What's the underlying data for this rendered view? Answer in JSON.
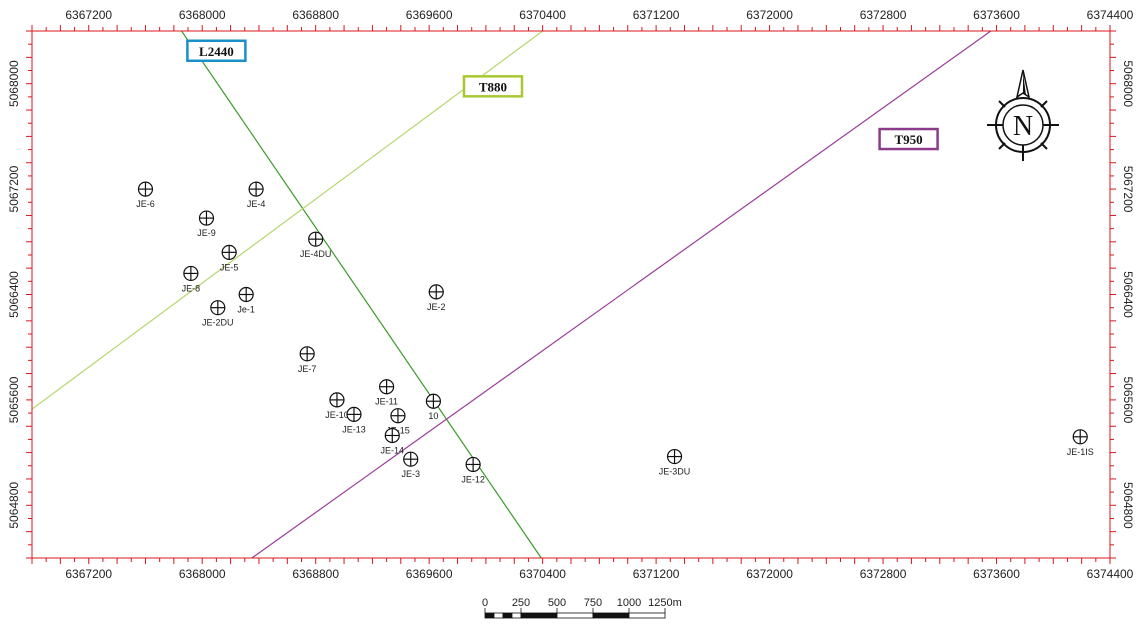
{
  "map": {
    "frame_color": "#d9161d",
    "x_range": [
      6366800,
      6374400
    ],
    "y_range": [
      5064400,
      5068400
    ],
    "x_ticks": [
      6367200,
      6368000,
      6368800,
      6369600,
      6370400,
      6371200,
      6372000,
      6372800,
      6373600,
      6374400
    ],
    "y_ticks": [
      5064800,
      5065600,
      5066400,
      5067200,
      5068000
    ],
    "x_tick_labels": [
      "6367200",
      "6368000",
      "6368800",
      "6369600",
      "6370400",
      "6371200",
      "6372000",
      "6372800",
      "6373600",
      "6374400"
    ],
    "y_tick_labels": [
      "5064800",
      "5065600",
      "5066400",
      "5067200",
      "5068000"
    ]
  },
  "profiles": [
    {
      "name": "L2440",
      "color": "#3a9a2a",
      "box_color": "#1a8fc8",
      "start": [
        6367810,
        5068470
      ],
      "end": [
        6370390,
        5064400
      ],
      "label_at": [
        6368100,
        5068250
      ]
    },
    {
      "name": "T880",
      "color": "#b6d66e",
      "box_color": "#a8c832",
      "start": [
        6366800,
        5065530
      ],
      "end": [
        6370400,
        5068400
      ],
      "label_at": [
        6370050,
        5067980
      ]
    },
    {
      "name": "T950",
      "color": "#9b3d9b",
      "box_color": "#8a3b8a",
      "start": [
        6368350,
        5064400
      ],
      "end": [
        6373560,
        5068400
      ],
      "label_at": [
        6372980,
        5067580
      ]
    }
  ],
  "wells": [
    {
      "name": "JE-6",
      "x": 6367600,
      "y": 5067200
    },
    {
      "name": "JE-4",
      "x": 6368380,
      "y": 5067200
    },
    {
      "name": "JE-9",
      "x": 6368030,
      "y": 5066980
    },
    {
      "name": "JE-4DU",
      "x": 6368800,
      "y": 5066820
    },
    {
      "name": "JE-5",
      "x": 6368190,
      "y": 5066720
    },
    {
      "name": "JE-8",
      "x": 6367920,
      "y": 5066560
    },
    {
      "name": "Je-1",
      "x": 6368310,
      "y": 5066400
    },
    {
      "name": "JE-2DU",
      "x": 6368110,
      "y": 5066300
    },
    {
      "name": "JE-2",
      "x": 6369650,
      "y": 5066420
    },
    {
      "name": "JE-7",
      "x": 6368740,
      "y": 5065950
    },
    {
      "name": "JE-11",
      "x": 6369300,
      "y": 5065700
    },
    {
      "name": "JE-10",
      "x": 6368950,
      "y": 5065600
    },
    {
      "name": "10",
      "x": 6369630,
      "y": 5065590
    },
    {
      "name": "JE-13",
      "x": 6369070,
      "y": 5065490
    },
    {
      "name": "JE-15",
      "x": 6369380,
      "y": 5065480
    },
    {
      "name": "JE-14",
      "x": 6369340,
      "y": 5065330
    },
    {
      "name": "JE-3",
      "x": 6369470,
      "y": 5065150
    },
    {
      "name": "JE-12",
      "x": 6369910,
      "y": 5065110
    },
    {
      "name": "JE-3DU",
      "x": 6371330,
      "y": 5065170
    },
    {
      "name": "JE-1IS",
      "x": 6374190,
      "y": 5065320
    }
  ],
  "scale_bar": {
    "labels": [
      "0",
      "250",
      "500",
      "750",
      "1000",
      "1250m"
    ],
    "values": [
      0,
      250,
      500,
      750,
      1000,
      1250
    ]
  },
  "north_arrow": {
    "letter": "N"
  }
}
